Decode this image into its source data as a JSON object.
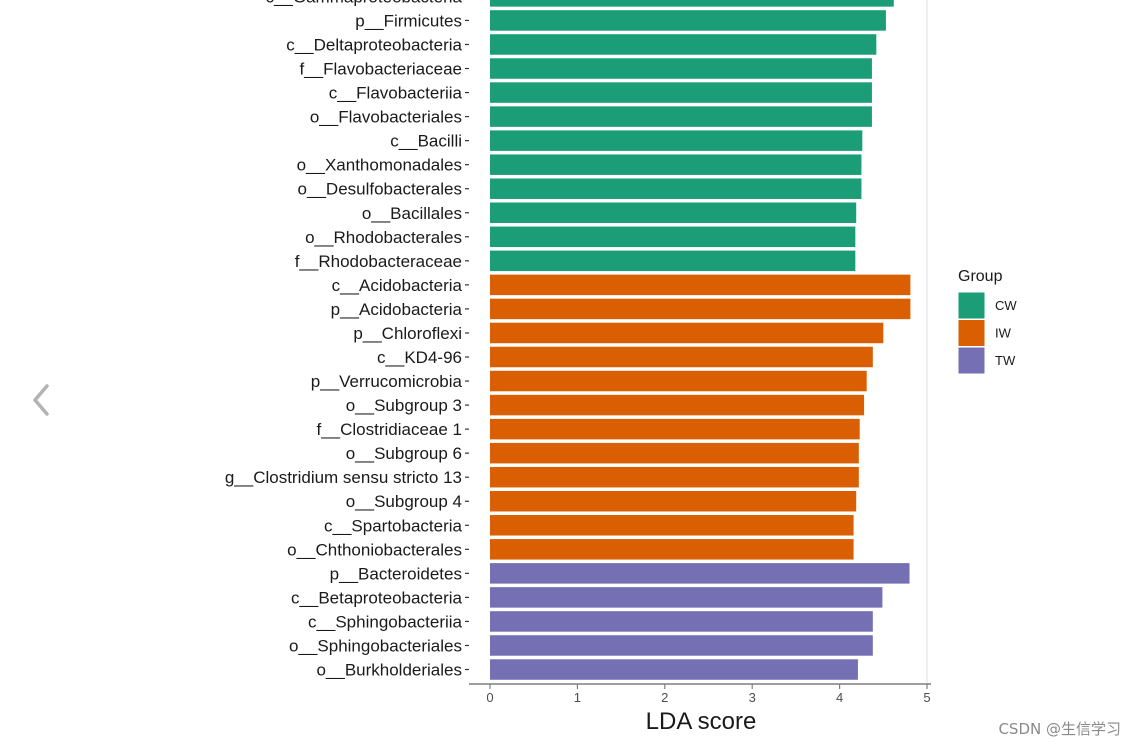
{
  "chart_data": {
    "type": "bar",
    "orientation": "horizontal",
    "title": "",
    "xlabel": "LDA score",
    "ylabel": "",
    "xlim": [
      0,
      5
    ],
    "xticks": [
      0,
      1,
      2,
      3,
      4,
      5
    ],
    "legend": {
      "title": "Group",
      "position": "right",
      "entries": [
        {
          "name": "CW",
          "color": "#1b9e77"
        },
        {
          "name": "IW",
          "color": "#d95f02"
        },
        {
          "name": "TW",
          "color": "#7570b3"
        }
      ]
    },
    "bars": [
      {
        "category": "c__Gammaproteobacteria",
        "value": 4.62,
        "group": "CW"
      },
      {
        "category": "p__Firmicutes",
        "value": 4.53,
        "group": "CW"
      },
      {
        "category": "c__Deltaproteobacteria",
        "value": 4.42,
        "group": "CW"
      },
      {
        "category": "f__Flavobacteriaceae",
        "value": 4.37,
        "group": "CW"
      },
      {
        "category": "c__Flavobacteriia",
        "value": 4.37,
        "group": "CW"
      },
      {
        "category": "o__Flavobacteriales",
        "value": 4.37,
        "group": "CW"
      },
      {
        "category": "c__Bacilli",
        "value": 4.26,
        "group": "CW"
      },
      {
        "category": "o__Xanthomonadales",
        "value": 4.25,
        "group": "CW"
      },
      {
        "category": "o__Desulfobacterales",
        "value": 4.25,
        "group": "CW"
      },
      {
        "category": "o__Bacillales",
        "value": 4.19,
        "group": "CW"
      },
      {
        "category": "o__Rhodobacterales",
        "value": 4.18,
        "group": "CW"
      },
      {
        "category": "f__Rhodobacteraceae",
        "value": 4.18,
        "group": "CW"
      },
      {
        "category": "c__Acidobacteria",
        "value": 4.81,
        "group": "IW"
      },
      {
        "category": "p__Acidobacteria",
        "value": 4.81,
        "group": "IW"
      },
      {
        "category": "p__Chloroflexi",
        "value": 4.5,
        "group": "IW"
      },
      {
        "category": "c__KD4-96",
        "value": 4.38,
        "group": "IW"
      },
      {
        "category": "p__Verrucomicrobia",
        "value": 4.31,
        "group": "IW"
      },
      {
        "category": "o__Subgroup 3",
        "value": 4.28,
        "group": "IW"
      },
      {
        "category": "f__Clostridiaceae 1",
        "value": 4.23,
        "group": "IW"
      },
      {
        "category": "o__Subgroup 6",
        "value": 4.22,
        "group": "IW"
      },
      {
        "category": "g__Clostridium sensu stricto 13",
        "value": 4.22,
        "group": "IW"
      },
      {
        "category": "o__Subgroup 4",
        "value": 4.19,
        "group": "IW"
      },
      {
        "category": "c__Spartobacteria",
        "value": 4.16,
        "group": "IW"
      },
      {
        "category": "o__Chthoniobacterales",
        "value": 4.16,
        "group": "IW"
      },
      {
        "category": "p__Bacteroidetes",
        "value": 4.8,
        "group": "TW"
      },
      {
        "category": "c__Betaproteobacteria",
        "value": 4.49,
        "group": "TW"
      },
      {
        "category": "c__Sphingobacteriia",
        "value": 4.38,
        "group": "TW"
      },
      {
        "category": "o__Sphingobacteriales",
        "value": 4.38,
        "group": "TW"
      },
      {
        "category": "o__Burkholderiales",
        "value": 4.21,
        "group": "TW"
      }
    ]
  },
  "nav": {
    "prev_arrow": "‹"
  },
  "watermark": "CSDN @生信学习"
}
